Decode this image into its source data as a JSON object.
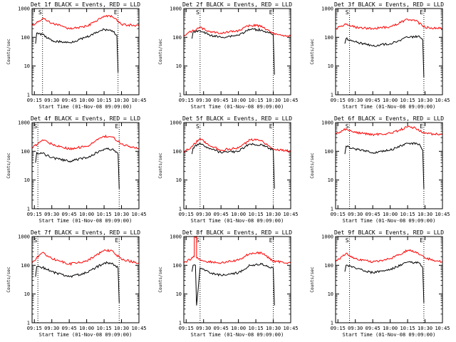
{
  "chart_data": [
    {
      "type": "line",
      "title": "Det 1f BLACK = Events, RED = LLD",
      "xlabel": "Start Time (01-Nov-08 09:09:00)",
      "ylabel": "Counts/sec",
      "yscale": "log",
      "ylim": [
        1,
        1000
      ],
      "xlim": [
        "09:13",
        "10:45"
      ],
      "xticks": [
        "09:15",
        "09:30",
        "09:45",
        "10:00",
        "10:15",
        "10:30",
        "10:45"
      ],
      "yticks": [
        "1",
        "10",
        "100",
        "1000"
      ],
      "markers": [
        "S",
        "E"
      ],
      "marker_lines": [
        "09:22",
        "10:27"
      ],
      "series": [
        {
          "color": "#ff0000",
          "x": [
            "09:13",
            "09:22",
            "09:30",
            "09:45",
            "10:00",
            "10:15",
            "10:22",
            "10:30",
            "10:45"
          ],
          "y": [
            250,
            450,
            310,
            200,
            240,
            550,
            520,
            280,
            250
          ]
        },
        {
          "color": "#000000",
          "x": [
            "09:16",
            "09:17",
            "09:22",
            "09:30",
            "09:45",
            "10:00",
            "10:15",
            "10:22",
            "10:26",
            "10:27"
          ],
          "y": [
            60,
            140,
            125,
            75,
            65,
            100,
            190,
            170,
            120,
            6
          ]
        }
      ]
    },
    {
      "type": "line",
      "title": "Det 2f BLACK = Events, RED = LLD",
      "xlabel": "Start Time (01-Nov-08 09:09:00)",
      "ylabel": "Counts/sec",
      "yscale": "log",
      "ylim": [
        1,
        1000
      ],
      "xlim": [
        "09:13",
        "10:45"
      ],
      "xticks": [
        "09:15",
        "09:30",
        "09:45",
        "10:00",
        "10:15",
        "10:30",
        "10:45"
      ],
      "yticks": [
        "1",
        "10",
        "100",
        "1000"
      ],
      "markers": [
        "S",
        "E"
      ],
      "marker_lines": [
        "09:27",
        "10:30"
      ],
      "series": [
        {
          "color": "#ff0000",
          "x": [
            "09:13",
            "09:20",
            "09:27",
            "09:35",
            "09:45",
            "10:00",
            "10:10",
            "10:20",
            "10:30",
            "10:45"
          ],
          "y": [
            120,
            160,
            220,
            160,
            140,
            170,
            260,
            250,
            130,
            110
          ]
        },
        {
          "color": "#000000",
          "x": [
            "09:20",
            "09:21",
            "09:27",
            "09:35",
            "09:45",
            "10:00",
            "10:10",
            "10:20",
            "10:30",
            "10:31"
          ],
          "y": [
            90,
            150,
            170,
            120,
            100,
            120,
            190,
            180,
            120,
            5
          ]
        }
      ]
    },
    {
      "type": "line",
      "title": "Det 3f BLACK = Events, RED = LLD",
      "xlabel": "Start Time (01-Nov-08 09:09:00)",
      "ylabel": "Counts/sec",
      "yscale": "log",
      "ylim": [
        1,
        1000
      ],
      "xlim": [
        "09:13",
        "10:45"
      ],
      "xticks": [
        "09:15",
        "09:30",
        "09:45",
        "10:00",
        "10:15",
        "10:30",
        "10:45"
      ],
      "yticks": [
        "1",
        "10",
        "100",
        "1000"
      ],
      "markers": [
        "S",
        "E"
      ],
      "marker_lines": [
        "09:25",
        "10:29"
      ],
      "series": [
        {
          "color": "#ff0000",
          "x": [
            "09:13",
            "09:22",
            "09:30",
            "09:45",
            "10:00",
            "10:15",
            "10:22",
            "10:30",
            "10:45"
          ],
          "y": [
            200,
            280,
            220,
            200,
            230,
            420,
            380,
            220,
            200
          ]
        },
        {
          "color": "#000000",
          "x": [
            "09:21",
            "09:22",
            "09:30",
            "09:45",
            "10:00",
            "10:15",
            "10:25",
            "10:28",
            "10:29"
          ],
          "y": [
            60,
            90,
            70,
            50,
            60,
            100,
            110,
            80,
            4
          ]
        }
      ]
    },
    {
      "type": "line",
      "title": "Det 4f BLACK = Events, RED = LLD",
      "xlabel": "Start Time (01-Nov-08 09:09:00)",
      "ylabel": "Counts/sec",
      "yscale": "log",
      "ylim": [
        1,
        1000
      ],
      "xlim": [
        "09:13",
        "10:45"
      ],
      "xticks": [
        "09:15",
        "09:30",
        "09:45",
        "10:00",
        "10:15",
        "10:30",
        "10:45"
      ],
      "yticks": [
        "1",
        "10",
        "100",
        "1000"
      ],
      "markers": [
        "S",
        "E"
      ],
      "marker_lines": [
        "09:18",
        "10:28"
      ],
      "series": [
        {
          "color": "#ff0000",
          "x": [
            "09:13",
            "09:22",
            "09:30",
            "09:45",
            "10:00",
            "10:15",
            "10:22",
            "10:30",
            "10:45"
          ],
          "y": [
            130,
            250,
            180,
            120,
            150,
            330,
            320,
            180,
            120
          ]
        },
        {
          "color": "#000000",
          "x": [
            "09:16",
            "09:17",
            "09:22",
            "09:30",
            "09:45",
            "10:00",
            "10:15",
            "10:22",
            "10:27",
            "10:28"
          ],
          "y": [
            40,
            90,
            85,
            60,
            45,
            60,
            120,
            120,
            80,
            5
          ]
        }
      ]
    },
    {
      "type": "line",
      "title": "Det 5f BLACK = Events, RED = LLD",
      "xlabel": "Start Time (01-Nov-08 09:09:00)",
      "ylabel": "Counts/sec",
      "yscale": "log",
      "ylim": [
        1,
        1000
      ],
      "xlim": [
        "09:13",
        "10:45"
      ],
      "xticks": [
        "09:15",
        "09:30",
        "09:45",
        "10:00",
        "10:15",
        "10:30",
        "10:45"
      ],
      "yticks": [
        "1",
        "10",
        "100",
        "1000"
      ],
      "markers": [
        "S",
        "E"
      ],
      "marker_lines": [
        "09:27",
        "10:30"
      ],
      "series": [
        {
          "color": "#ff0000",
          "x": [
            "09:13",
            "09:20",
            "09:27",
            "09:35",
            "09:45",
            "10:00",
            "10:10",
            "10:20",
            "10:30",
            "10:45"
          ],
          "y": [
            90,
            150,
            280,
            160,
            110,
            130,
            250,
            240,
            120,
            100
          ]
        },
        {
          "color": "#000000",
          "x": [
            "09:20",
            "09:21",
            "09:27",
            "09:35",
            "09:45",
            "10:00",
            "10:10",
            "10:20",
            "10:30",
            "10:31"
          ],
          "y": [
            80,
            130,
            190,
            120,
            90,
            100,
            180,
            170,
            110,
            5
          ]
        }
      ]
    },
    {
      "type": "line",
      "title": "Det 6f BLACK = Events, RED = LLD",
      "xlabel": "Start Time (01-Nov-08 09:09:00)",
      "ylabel": "Counts/sec",
      "yscale": "log",
      "ylim": [
        1,
        1000
      ],
      "xlim": [
        "09:13",
        "10:45"
      ],
      "xticks": [
        "09:15",
        "09:30",
        "09:45",
        "10:00",
        "10:15",
        "10:30",
        "10:45"
      ],
      "yticks": [
        "1",
        "10",
        "100",
        "1000"
      ],
      "markers": [
        "S",
        "E"
      ],
      "marker_lines": [
        "09:25",
        "10:29"
      ],
      "series": [
        {
          "color": "#ff0000",
          "x": [
            "09:13",
            "09:22",
            "09:30",
            "09:45",
            "10:00",
            "10:15",
            "10:22",
            "10:30",
            "10:45"
          ],
          "y": [
            400,
            600,
            450,
            380,
            420,
            700,
            640,
            420,
            380
          ]
        },
        {
          "color": "#000000",
          "x": [
            "09:21",
            "09:22",
            "09:30",
            "09:45",
            "10:00",
            "10:15",
            "10:25",
            "10:28",
            "10:29"
          ],
          "y": [
            80,
            150,
            120,
            90,
            110,
            190,
            180,
            110,
            5
          ]
        }
      ]
    },
    {
      "type": "line",
      "title": "Det 7f BLACK = Events, RED = LLD",
      "xlabel": "Start Time (01-Nov-08 09:09:00)",
      "ylabel": "Counts/sec",
      "yscale": "log",
      "ylim": [
        1,
        1000
      ],
      "xlim": [
        "09:13",
        "10:45"
      ],
      "xticks": [
        "09:15",
        "09:30",
        "09:45",
        "10:00",
        "10:15",
        "10:30",
        "10:45"
      ],
      "yticks": [
        "1",
        "10",
        "100",
        "1000"
      ],
      "markers": [
        "S",
        "E"
      ],
      "marker_lines": [
        "09:18",
        "10:28"
      ],
      "series": [
        {
          "color": "#ff0000",
          "x": [
            "09:13",
            "09:22",
            "09:30",
            "09:45",
            "10:00",
            "10:15",
            "10:22",
            "10:30",
            "10:45"
          ],
          "y": [
            120,
            280,
            170,
            110,
            140,
            330,
            320,
            160,
            120
          ]
        },
        {
          "color": "#000000",
          "x": [
            "09:16",
            "09:17",
            "09:22",
            "09:30",
            "09:45",
            "10:00",
            "10:15",
            "10:22",
            "10:27",
            "10:28"
          ],
          "y": [
            40,
            90,
            85,
            60,
            40,
            55,
            120,
            120,
            80,
            5
          ]
        }
      ]
    },
    {
      "type": "line",
      "title": "Det 8f BLACK = Events, RED = LLD",
      "xlabel": "Start Time (01-Nov-08 09:09:00)",
      "ylabel": "Counts/sec",
      "yscale": "log",
      "ylim": [
        1,
        1000
      ],
      "xlim": [
        "09:13",
        "10:45"
      ],
      "xticks": [
        "09:15",
        "09:30",
        "09:45",
        "10:00",
        "10:15",
        "10:30",
        "10:45"
      ],
      "yticks": [
        "1",
        "10",
        "100",
        "1000"
      ],
      "markers": [
        "S",
        "E"
      ],
      "marker_lines": [
        "09:27",
        "10:30"
      ],
      "series": [
        {
          "color": "#ff0000",
          "x": [
            "09:13",
            "09:22",
            "09:22",
            "09:24",
            "09:24",
            "09:30",
            "09:45",
            "10:00",
            "10:10",
            "10:20",
            "10:30",
            "10:45"
          ],
          "y": [
            120,
            200,
            1000,
            1000,
            180,
            140,
            120,
            150,
            260,
            270,
            140,
            120
          ]
        },
        {
          "color": "#000000",
          "x": [
            "09:20",
            "09:21",
            "09:23",
            "09:24",
            "09:27",
            "09:35",
            "09:45",
            "10:00",
            "10:10",
            "10:20",
            "10:30",
            "10:31"
          ],
          "y": [
            60,
            100,
            100,
            4,
            80,
            55,
            45,
            55,
            100,
            110,
            80,
            4
          ]
        }
      ]
    },
    {
      "type": "line",
      "title": "Det 9f BLACK = Events, RED = LLD",
      "xlabel": "Start Time (01-Nov-08 09:09:00)",
      "ylabel": "Counts/sec",
      "yscale": "log",
      "ylim": [
        1,
        1000
      ],
      "xlim": [
        "09:13",
        "10:45"
      ],
      "xticks": [
        "09:15",
        "09:30",
        "09:45",
        "10:00",
        "10:15",
        "10:30",
        "10:45"
      ],
      "yticks": [
        "1",
        "10",
        "100",
        "1000"
      ],
      "markers": [
        "S",
        "E"
      ],
      "marker_lines": [
        "09:25",
        "10:29"
      ],
      "series": [
        {
          "color": "#ff0000",
          "x": [
            "09:13",
            "09:22",
            "09:30",
            "09:45",
            "10:00",
            "10:15",
            "10:22",
            "10:30",
            "10:45"
          ],
          "y": [
            130,
            260,
            170,
            130,
            170,
            330,
            300,
            180,
            130
          ]
        },
        {
          "color": "#000000",
          "x": [
            "09:21",
            "09:22",
            "09:30",
            "09:45",
            "10:00",
            "10:15",
            "10:25",
            "10:28",
            "10:29"
          ],
          "y": [
            60,
            100,
            80,
            55,
            70,
            130,
            120,
            80,
            5
          ]
        }
      ]
    }
  ]
}
